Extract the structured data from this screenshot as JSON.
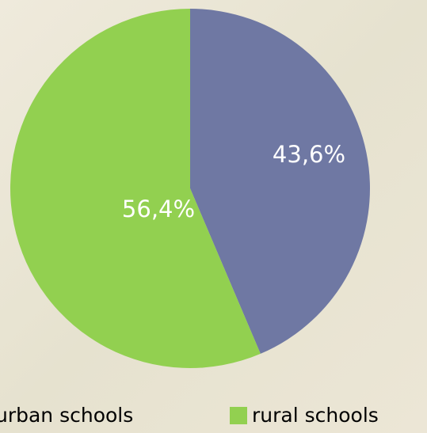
{
  "chart_data": {
    "type": "pie",
    "categories": [
      "urban schools",
      "rural schools"
    ],
    "values": [
      43.6,
      56.4
    ],
    "value_labels": [
      "43,6%",
      "56,4%"
    ],
    "colors": [
      "#6f78a3",
      "#92d050"
    ]
  }
}
